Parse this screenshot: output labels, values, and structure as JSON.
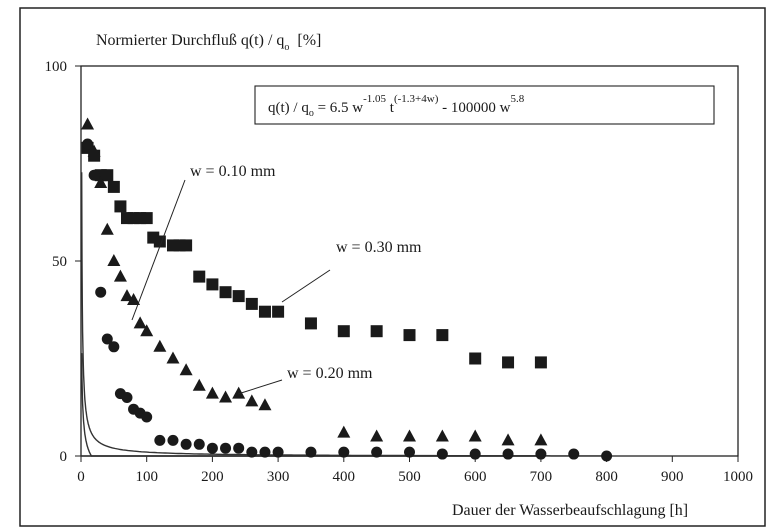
{
  "chart_data": {
    "type": "scatter",
    "ylabel_main": "Normierter Durchfluß q(t) / q",
    "ylabel_sub": "o",
    "ylabel_unit": "[%]",
    "xlabel": "Dauer der Wasserbeaufschlagung [h]",
    "xlim": [
      0,
      1000
    ],
    "ylim": [
      0,
      100
    ],
    "x_ticks": [
      "0",
      "100",
      "200",
      "300",
      "400",
      "500",
      "600",
      "700",
      "800",
      "900",
      "1000"
    ],
    "y_ticks": [
      "0",
      "50",
      "100"
    ],
    "grid": false,
    "formula": {
      "lhs": "q(t) / q",
      "lhs_sub": "o",
      "eq": " = 6.5 w",
      "exp1": "-1.05",
      "t": " t",
      "exp2": "(-1.3+4w)",
      "mid": "  - 100000 w",
      "exp3": "5.8"
    },
    "series": [
      {
        "name": "w = 0.30 mm",
        "marker": "square",
        "w": 0.3,
        "x": [
          10,
          20,
          30,
          40,
          50,
          60,
          70,
          80,
          90,
          100,
          110,
          120,
          140,
          150,
          160,
          180,
          200,
          220,
          240,
          260,
          280,
          300,
          350,
          400,
          450,
          500,
          550,
          600,
          650,
          700
        ],
        "y": [
          79,
          77,
          72,
          72,
          69,
          64,
          61,
          61,
          61,
          61,
          56,
          55,
          54,
          54,
          54,
          46,
          44,
          42,
          41,
          39,
          37,
          37,
          34,
          32,
          32,
          31,
          31,
          25,
          24,
          24
        ]
      },
      {
        "name": "w = 0.20 mm",
        "marker": "triangle",
        "w": 0.2,
        "x": [
          10,
          20,
          30,
          40,
          50,
          60,
          70,
          80,
          90,
          100,
          120,
          140,
          160,
          180,
          200,
          220,
          240,
          260,
          280,
          400,
          450,
          500,
          550,
          600,
          650,
          700
        ],
        "y": [
          85,
          78,
          70,
          58,
          50,
          46,
          41,
          40,
          34,
          32,
          28,
          25,
          22,
          18,
          16,
          15,
          16,
          14,
          13,
          6,
          5,
          5,
          5,
          5,
          4,
          4
        ]
      },
      {
        "name": "w = 0.10 mm",
        "marker": "circle",
        "w": 0.1,
        "x": [
          10,
          20,
          30,
          40,
          50,
          60,
          70,
          80,
          90,
          100,
          120,
          140,
          160,
          180,
          200,
          220,
          240,
          260,
          280,
          300,
          350,
          400,
          450,
          500,
          550,
          600,
          650,
          700,
          750,
          800
        ],
        "y": [
          80,
          72,
          42,
          30,
          28,
          16,
          15,
          12,
          11,
          10,
          4,
          4,
          3,
          3,
          2,
          2,
          2,
          1,
          1,
          1,
          1,
          1,
          1,
          1,
          0.5,
          0.5,
          0.5,
          0.5,
          0.5,
          0
        ]
      }
    ]
  }
}
